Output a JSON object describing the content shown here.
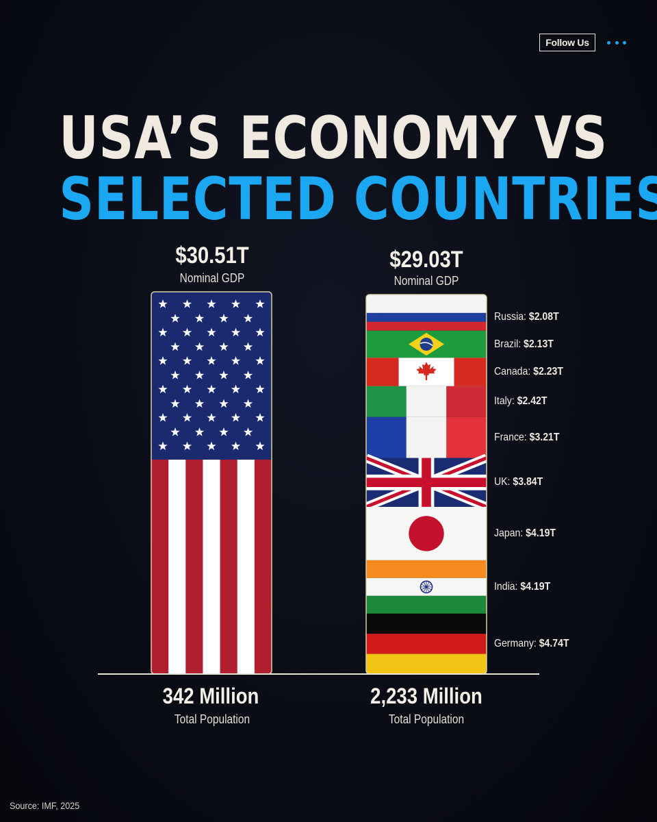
{
  "header": {
    "follow_label": "Follow Us",
    "more_icon": "more-dots-icon",
    "accent": "#1ba7f2"
  },
  "title": {
    "line1": "USA’S ECONOMY VS",
    "line2": "SELECTED COUNTRIES"
  },
  "source": "Source: IMF, 2025",
  "chart_data": {
    "type": "bar",
    "categories": [
      "USA",
      "Selected Countries"
    ],
    "usa": {
      "gdp_label": "$30.51T",
      "gdp_value": 30.51,
      "gdp_caption": "Nominal GDP",
      "population_label": "342 Million",
      "population_value": 342,
      "population_caption": "Total Population"
    },
    "selected": {
      "gdp_label": "$29.03T",
      "gdp_value": 29.03,
      "gdp_caption": "Nominal GDP",
      "population_label": "2,233 Million",
      "population_value": 2233,
      "population_caption": "Total Population",
      "countries": [
        {
          "name": "Russia",
          "value": 2.08,
          "label": "$2.08T",
          "flag": "russia-flag"
        },
        {
          "name": "Brazil",
          "value": 2.13,
          "label": "$2.13T",
          "flag": "brazil-flag"
        },
        {
          "name": "Canada",
          "value": 2.23,
          "label": "$2.23T",
          "flag": "canada-flag"
        },
        {
          "name": "Italy",
          "value": 2.42,
          "label": "$2.42T",
          "flag": "italy-flag"
        },
        {
          "name": "France",
          "value": 3.21,
          "label": "$3.21T",
          "flag": "france-flag"
        },
        {
          "name": "UK",
          "value": 3.84,
          "label": "$3.84T",
          "flag": "uk-flag"
        },
        {
          "name": "Japan",
          "value": 4.19,
          "label": "$4.19T",
          "flag": "japan-flag"
        },
        {
          "name": "India",
          "value": 4.19,
          "label": "$4.19T",
          "flag": "india-flag"
        },
        {
          "name": "Germany",
          "value": 4.74,
          "label": "$4.74T",
          "flag": "germany-flag"
        }
      ]
    }
  }
}
